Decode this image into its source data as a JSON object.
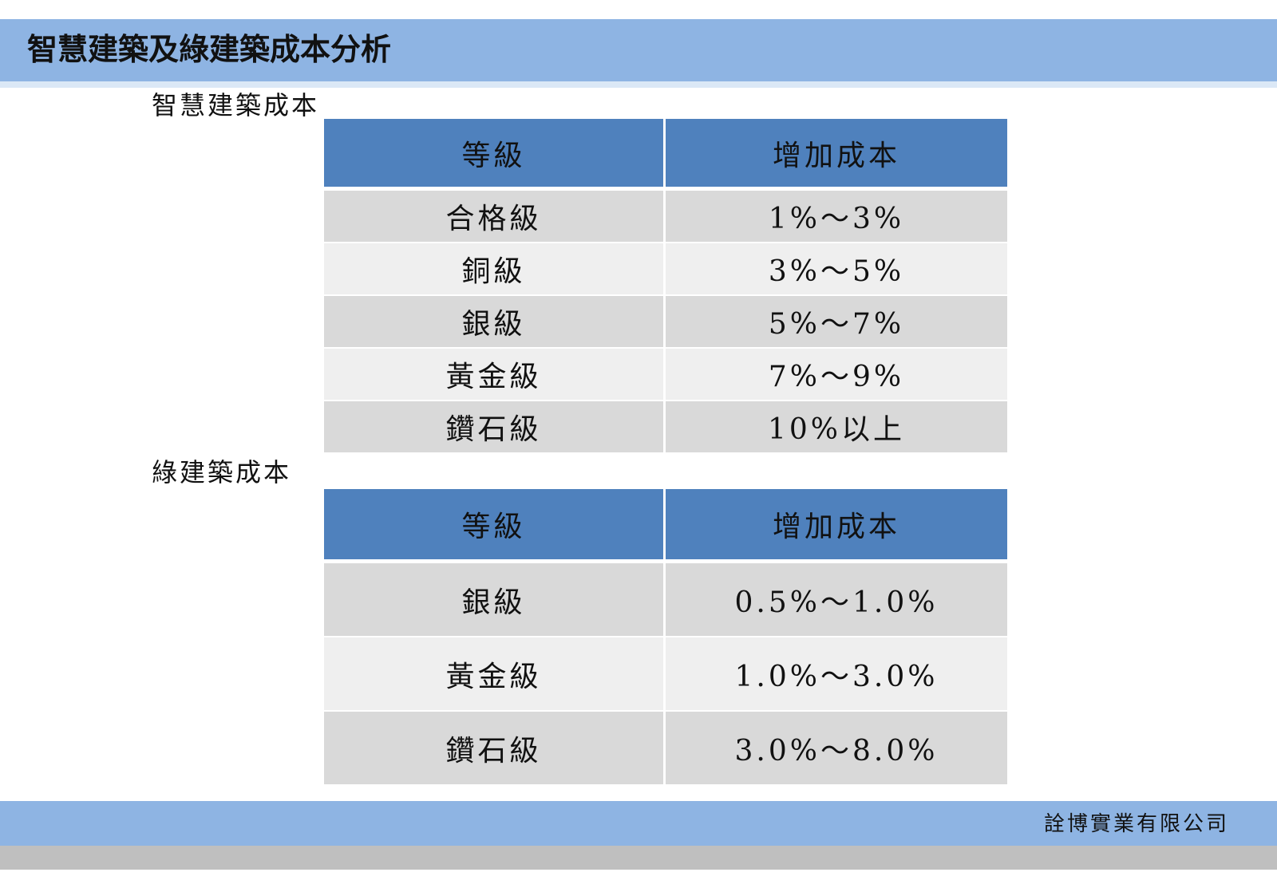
{
  "page_title": "智慧建築及綠建築成本分析",
  "smart_building": {
    "label": "智慧建築成本",
    "headers": [
      "等級",
      "增加成本"
    ],
    "rows": [
      {
        "grade": "合格級",
        "cost": "1%～3%"
      },
      {
        "grade": "銅級",
        "cost": "3%～5%"
      },
      {
        "grade": "銀級",
        "cost": "5%～7%"
      },
      {
        "grade": "黃金級",
        "cost": "7%～9%"
      },
      {
        "grade": "鑽石級",
        "cost": "10%以上"
      }
    ]
  },
  "green_building": {
    "label": "綠建築成本",
    "headers": [
      "等級",
      "增加成本"
    ],
    "rows": [
      {
        "grade": "銀級",
        "cost": "0.5%～1.0%"
      },
      {
        "grade": "黃金級",
        "cost": "1.0%～3.0%"
      },
      {
        "grade": "鑽石級",
        "cost": "3.0%～8.0%"
      }
    ]
  },
  "footer": {
    "company": "詮博實業有限公司"
  },
  "colors": {
    "title_bar": "#8eb4e3",
    "header_fill": "#4f81bd",
    "row_odd": "#d9d9d9",
    "row_even": "#efefef",
    "footer_strip": "#bfbfbf"
  }
}
